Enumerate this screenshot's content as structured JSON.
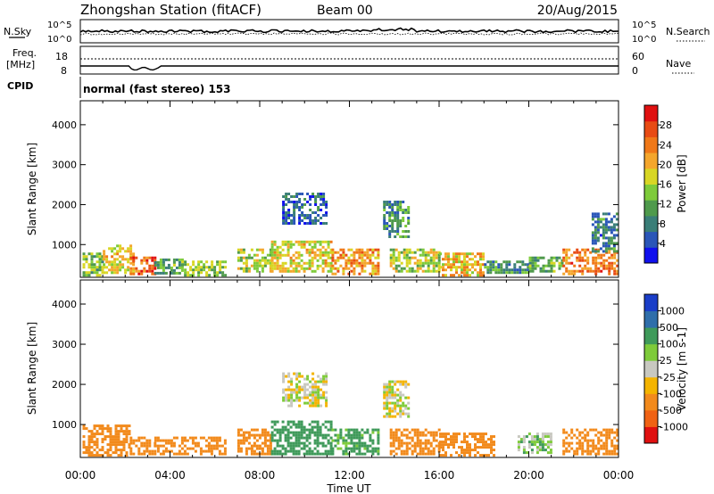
{
  "header": {
    "station_title": "Zhongshan Station (fitACF)",
    "beam": "Beam 00",
    "date": "20/Aug/2015"
  },
  "noise_panel": {
    "left_label": "N.Sky",
    "right_label": "N.Search",
    "left_ticks": [
      "10^5",
      "10^0"
    ],
    "right_ticks": [
      "10^5",
      "10^0"
    ]
  },
  "freq_panel": {
    "left_label_1": "Freq.",
    "left_label_2": "[MHz]",
    "left_ticks": [
      "18",
      "8"
    ],
    "right_label": "Nave",
    "right_ticks": [
      "60",
      "0"
    ]
  },
  "cpid_panel": {
    "label": "CPID",
    "program": "normal (fast stereo) 153"
  },
  "colors": {
    "power_scale": [
      "#1010ee",
      "#2a56b8",
      "#3a7e78",
      "#4f9a4c",
      "#7ecb3a",
      "#d8d624",
      "#f4a62c",
      "#f07818",
      "#e84b14",
      "#e01010"
    ],
    "velocity_scale": [
      "#e01010",
      "#f06214",
      "#f28a1c",
      "#f4b400",
      "#c8c8c0",
      "#7ecb3a",
      "#3f9a5a",
      "#2f6eaa",
      "#1a3ec8"
    ]
  },
  "chart_data": [
    {
      "type": "heatmap",
      "name": "power",
      "xlabel": "",
      "ylabel": "Slant Range [km]",
      "x_range_hours": [
        0,
        24
      ],
      "ylim_km": [
        180,
        4600
      ],
      "y_ticks": [
        "1000",
        "2000",
        "3000",
        "4000"
      ],
      "colorbar_label": "Power [dB]",
      "colorbar_ticks": [
        "4",
        "8",
        "12",
        "16",
        "20",
        "24",
        "28"
      ],
      "colorbar_range": [
        0,
        32
      ],
      "regions": [
        {
          "t0": 0.1,
          "t1": 1.0,
          "r0": 250,
          "r1": 800,
          "value": 14
        },
        {
          "t0": 1.0,
          "t1": 2.4,
          "r0": 300,
          "r1": 1000,
          "value": 18
        },
        {
          "t0": 2.2,
          "t1": 3.3,
          "r0": 250,
          "r1": 700,
          "value": 26
        },
        {
          "t0": 3.3,
          "t1": 4.5,
          "r0": 300,
          "r1": 650,
          "value": 12
        },
        {
          "t0": 4.5,
          "t1": 6.5,
          "r0": 250,
          "r1": 600,
          "value": 14
        },
        {
          "t0": 7.0,
          "t1": 8.5,
          "r0": 300,
          "r1": 900,
          "value": 16
        },
        {
          "t0": 8.5,
          "t1": 11.2,
          "r0": 300,
          "r1": 1100,
          "value": 18
        },
        {
          "t0": 9.0,
          "t1": 11.0,
          "r0": 1500,
          "r1": 2300,
          "value": 6
        },
        {
          "t0": 11.2,
          "t1": 13.3,
          "r0": 250,
          "r1": 900,
          "value": 22
        },
        {
          "t0": 13.5,
          "t1": 14.6,
          "r0": 1200,
          "r1": 2100,
          "value": 10
        },
        {
          "t0": 13.8,
          "t1": 16.0,
          "r0": 300,
          "r1": 900,
          "value": 16
        },
        {
          "t0": 16.0,
          "t1": 18.0,
          "r0": 250,
          "r1": 800,
          "value": 20
        },
        {
          "t0": 18.0,
          "t1": 20.0,
          "r0": 300,
          "r1": 600,
          "value": 10
        },
        {
          "t0": 20.0,
          "t1": 21.5,
          "r0": 300,
          "r1": 700,
          "value": 12
        },
        {
          "t0": 21.5,
          "t1": 23.9,
          "r0": 250,
          "r1": 900,
          "value": 24
        },
        {
          "t0": 22.8,
          "t1": 23.9,
          "r0": 800,
          "r1": 1800,
          "value": 8
        }
      ]
    },
    {
      "type": "heatmap",
      "name": "velocity",
      "xlabel": "Time UT",
      "ylabel": "Slant Range [km]",
      "x_range_hours": [
        0,
        24
      ],
      "x_ticks": [
        "00:00",
        "04:00",
        "08:00",
        "12:00",
        "16:00",
        "20:00",
        "00:00"
      ],
      "ylim_km": [
        180,
        4600
      ],
      "y_ticks": [
        "1000",
        "2000",
        "3000",
        "4000"
      ],
      "colorbar_label": "Velocity [m s-1]",
      "colorbar_ticks": [
        "-1000",
        "-500",
        "-100",
        "-25",
        "25",
        "100",
        "500",
        "1000"
      ],
      "regions": [
        {
          "t0": 0.1,
          "t1": 2.2,
          "r0": 250,
          "r1": 1000,
          "value": -300
        },
        {
          "t0": 2.2,
          "t1": 3.3,
          "r0": 250,
          "r1": 700,
          "value": -200
        },
        {
          "t0": 3.3,
          "t1": 6.5,
          "r0": 250,
          "r1": 700,
          "value": -250
        },
        {
          "t0": 7.0,
          "t1": 8.5,
          "r0": 300,
          "r1": 900,
          "value": -300
        },
        {
          "t0": 8.5,
          "t1": 11.2,
          "r0": 300,
          "r1": 1100,
          "value": 400
        },
        {
          "t0": 9.0,
          "t1": 11.0,
          "r0": 1500,
          "r1": 2300,
          "value": 0
        },
        {
          "t0": 11.2,
          "t1": 13.3,
          "r0": 250,
          "r1": 900,
          "value": 150
        },
        {
          "t0": 13.5,
          "t1": 14.6,
          "r0": 1200,
          "r1": 2100,
          "value": 0
        },
        {
          "t0": 13.8,
          "t1": 16.0,
          "r0": 300,
          "r1": 900,
          "value": -250
        },
        {
          "t0": 16.0,
          "t1": 18.5,
          "r0": 250,
          "r1": 800,
          "value": -300
        },
        {
          "t0": 19.5,
          "t1": 21.0,
          "r0": 300,
          "r1": 800,
          "value": 60
        },
        {
          "t0": 21.5,
          "t1": 23.9,
          "r0": 250,
          "r1": 900,
          "value": -300
        }
      ]
    }
  ]
}
